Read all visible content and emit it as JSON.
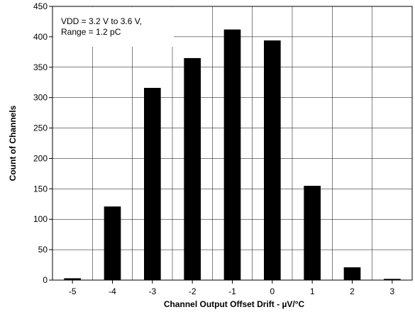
{
  "chart_data": {
    "type": "bar",
    "categories": [
      "-5",
      "-4",
      "-3",
      "-2",
      "-1",
      "0",
      "1",
      "2",
      "3"
    ],
    "values": [
      3,
      121,
      316,
      365,
      412,
      394,
      155,
      21,
      2
    ],
    "title": "",
    "xlabel": "Channel Output Offset Drift - µV/°C",
    "ylabel": "Count of Channels",
    "ylim": [
      0,
      450
    ],
    "yticks": [
      "0",
      "50",
      "100",
      "150",
      "200",
      "250",
      "300",
      "350",
      "400",
      "450"
    ],
    "grid": true,
    "bar_color": "#000000",
    "annotation": {
      "line1": "VDD = 3.2 V to 3.6 V,",
      "line2": "Range = 1.2 pC"
    }
  }
}
